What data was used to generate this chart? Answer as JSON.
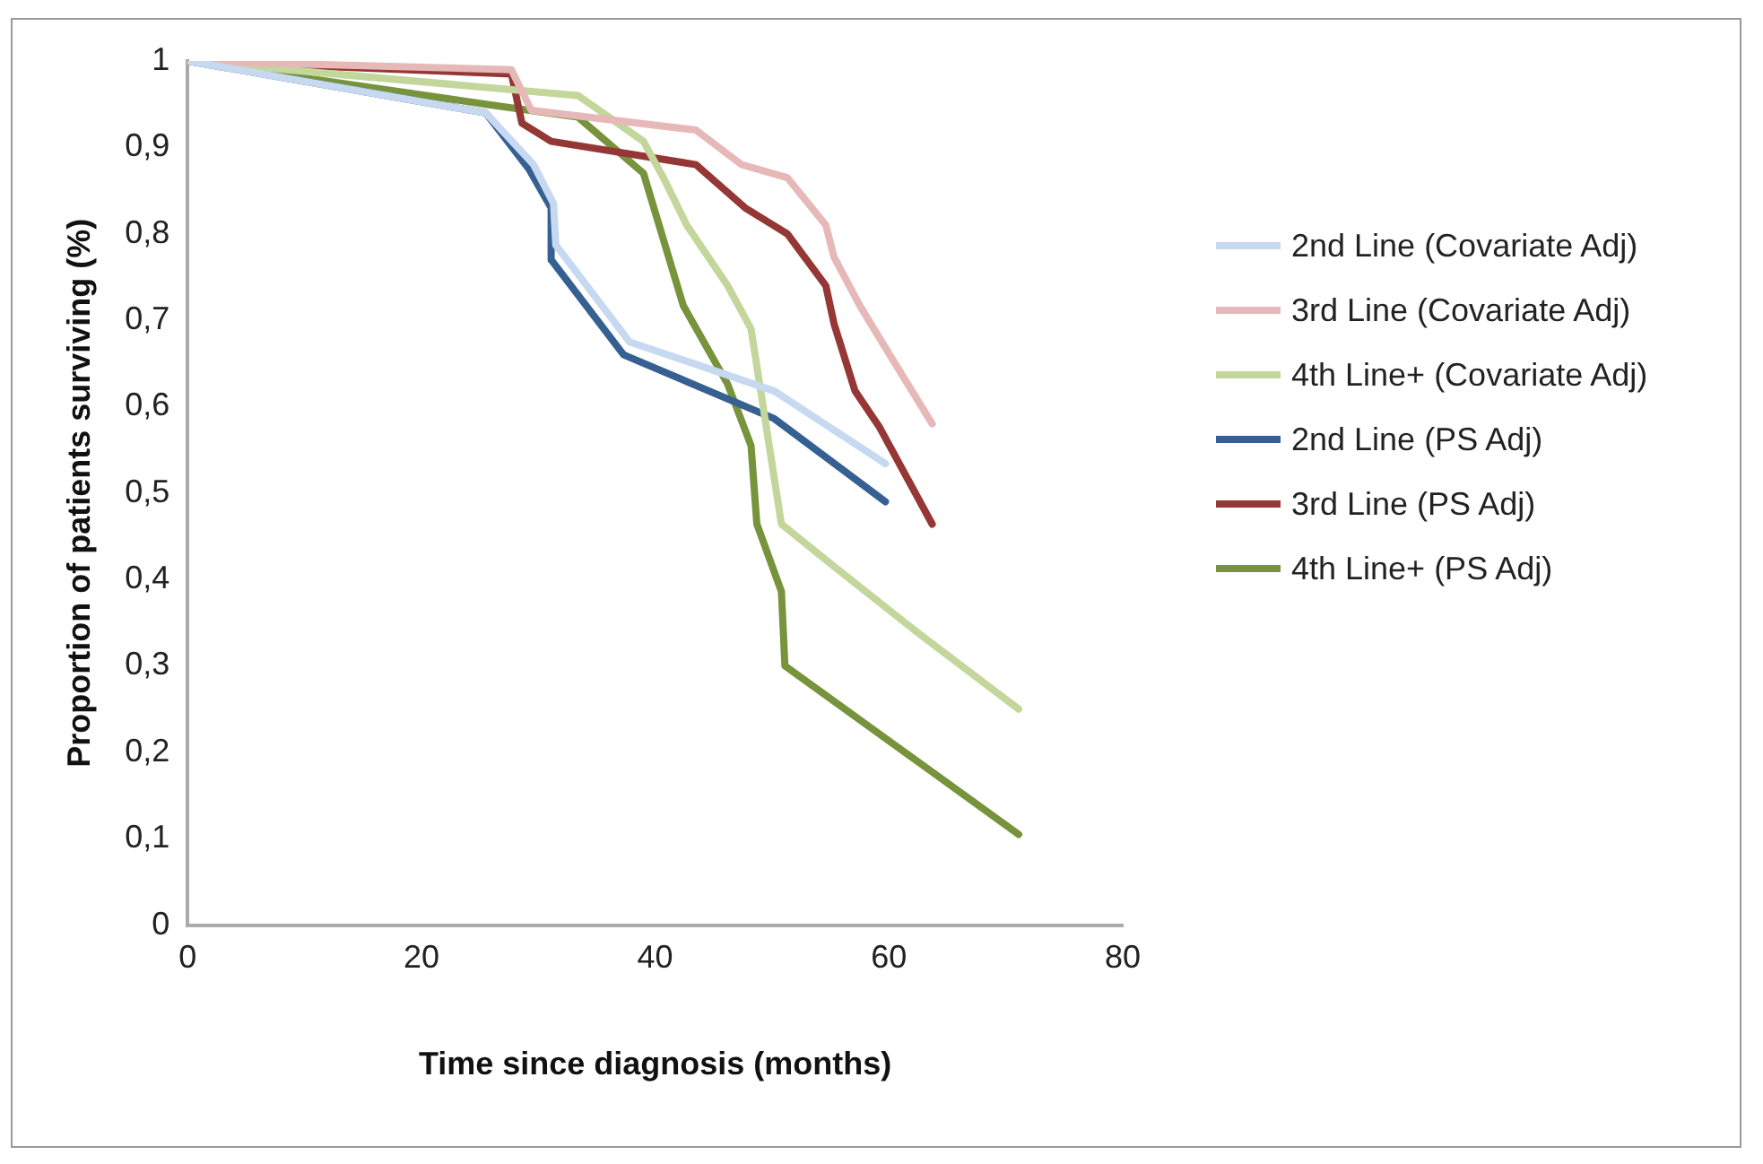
{
  "chart_data": {
    "type": "line",
    "xlabel": "Time since diagnosis (months)",
    "ylabel": "Proportion of patients surviving (%)",
    "xlim": [
      0,
      80
    ],
    "xticks": [
      0,
      20,
      40,
      60,
      80
    ],
    "ylim": [
      0,
      1
    ],
    "yticks": [
      0,
      {
        "value": 0.1,
        "label": "0,1"
      },
      {
        "value": 0.2,
        "label": "0,2"
      },
      {
        "value": 0.3,
        "label": "0,3"
      },
      {
        "value": 0.4,
        "label": "0,4"
      },
      {
        "value": 0.5,
        "label": "0,5"
      },
      {
        "value": 0.6,
        "label": "0,6"
      },
      {
        "value": 0.7,
        "label": "0,7"
      },
      {
        "value": 0.8,
        "label": "0,8"
      },
      {
        "value": 0.9,
        "label": "0,9"
      },
      1
    ],
    "grid": false,
    "legend": "right",
    "marker": "none",
    "line_style": "solid",
    "series": [
      {
        "name": "2nd Line (Covariate Adj)",
        "color": "#c6d9f1",
        "x": [
          0,
          25.5,
          29.6,
          31.3,
          31.5,
          37.8,
          50.2,
          59.7
        ],
        "values": [
          1,
          0.94,
          0.88,
          0.835,
          0.787,
          0.675,
          0.618,
          0.534
        ]
      },
      {
        "name": "3rd Line (Covariate Adj)",
        "color": "#e6b9b8",
        "x": [
          0,
          27.7,
          29.4,
          43.5,
          47.4,
          51.3,
          54.6,
          55.3,
          57.5,
          59.7,
          63.7
        ],
        "values": [
          1,
          0.99,
          0.943,
          0.92,
          0.88,
          0.865,
          0.81,
          0.773,
          0.717,
          0.668,
          0.58
        ]
      },
      {
        "name": "4th Line+ (Covariate Adj)",
        "color": "#c3d69b",
        "x": [
          0,
          33.4,
          39,
          40.7,
          42.7,
          46.2,
          48.2,
          50.8,
          55.3,
          62.5,
          71.1
        ],
        "values": [
          1,
          0.96,
          0.907,
          0.865,
          0.81,
          0.74,
          0.69,
          0.464,
          0.415,
          0.338,
          0.25
        ]
      },
      {
        "name": "2nd Line (PS Adj)",
        "color": "#376092",
        "x": [
          0,
          25.5,
          29.2,
          31.1,
          31.1,
          37.3,
          50.2,
          59.7
        ],
        "values": [
          1,
          0.94,
          0.875,
          0.83,
          0.77,
          0.66,
          0.586,
          0.49
        ]
      },
      {
        "name": "3rd Line (PS Adj)",
        "color": "#953735",
        "x": [
          0,
          27.7,
          28.6,
          31.1,
          43.5,
          47.7,
          51.3,
          54.6,
          55.3,
          57.1,
          59.2,
          63.7
        ],
        "values": [
          1,
          0.985,
          0.928,
          0.907,
          0.88,
          0.83,
          0.8,
          0.74,
          0.696,
          0.618,
          0.576,
          0.464
        ]
      },
      {
        "name": "4th Line+ (PS Adj)",
        "color": "#77933c",
        "x": [
          0,
          25.5,
          33.4,
          39,
          42.4,
          46.2,
          48.2,
          48.7,
          50.8,
          51.1,
          71.1
        ],
        "values": [
          1,
          0.95,
          0.935,
          0.87,
          0.717,
          0.626,
          0.555,
          0.464,
          0.386,
          0.3,
          0.105
        ]
      }
    ]
  }
}
